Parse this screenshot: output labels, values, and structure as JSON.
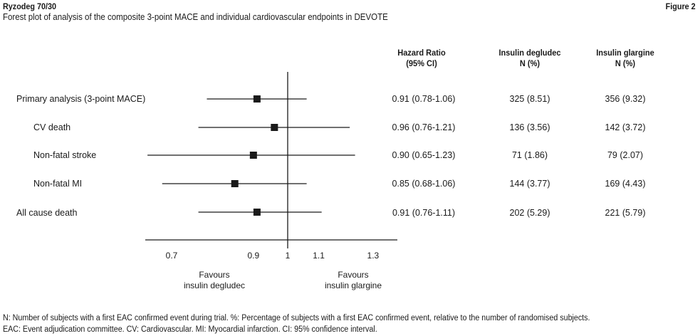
{
  "header": {
    "product": "Ryzodeg 70/30",
    "figure_label": "Figure 2",
    "subtitle": "Forest plot of analysis of the composite 3-point MACE and individual cardiovascular endpoints in DEVOTE"
  },
  "columns": {
    "hr_line1": "Hazard Ratio",
    "hr_line2": "(95% CI)",
    "deg_line1": "Insulin degludec",
    "deg_line2": "N (%)",
    "gla_line1": "Insulin glargine",
    "gla_line2": "N (%)"
  },
  "rows": [
    {
      "label": "Primary analysis (3-point MACE)",
      "hr_text": "0.91 (0.78-1.06)",
      "degludec": "325 (8.51)",
      "glargine": "356 (9.32)"
    },
    {
      "label": "CV death",
      "hr_text": "0.96 (0.76-1.21)",
      "degludec": "136 (3.56)",
      "glargine": "142 (3.72)"
    },
    {
      "label": "Non-fatal stroke",
      "hr_text": "0.90 (0.65-1.23)",
      "degludec": "71 (1.86)",
      "glargine": "79 (2.07)"
    },
    {
      "label": "Non-fatal MI",
      "hr_text": "0.85 (0.68-1.06)",
      "degludec": "144 (3.77)",
      "glargine": "169 (4.43)"
    },
    {
      "label": "All cause death",
      "hr_text": "0.91 (0.76-1.11)",
      "degludec": "202 (5.29)",
      "glargine": "221 (5.79)"
    }
  ],
  "chart_data": {
    "type": "forest",
    "xscale": "log",
    "reference_line": 1,
    "xticks": [
      0.7,
      0.9,
      1,
      1.1,
      1.3
    ],
    "xtick_labels": [
      "0.7",
      "0.9",
      "1",
      "1.1",
      "1.3"
    ],
    "favours_left_line1": "Favours",
    "favours_left_line2": "insulin degludec",
    "favours_right_line1": "Favours",
    "favours_right_line2": "insulin glargine",
    "series": [
      {
        "name": "Primary analysis (3-point MACE)",
        "hr": 0.91,
        "lower": 0.78,
        "upper": 1.06
      },
      {
        "name": "CV death",
        "hr": 0.96,
        "lower": 0.76,
        "upper": 1.21
      },
      {
        "name": "Non-fatal stroke",
        "hr": 0.9,
        "lower": 0.65,
        "upper": 1.23
      },
      {
        "name": "Non-fatal MI",
        "hr": 0.85,
        "lower": 0.68,
        "upper": 1.06
      },
      {
        "name": "All cause death",
        "hr": 0.91,
        "lower": 0.76,
        "upper": 1.11
      }
    ]
  },
  "footnotes": {
    "line1": "N: Number of subjects with a first EAC confirmed event during trial. %: Percentage of subjects with a first EAC confirmed event, relative to the number of randomised subjects.",
    "line2": "EAC: Event adjudication committee. CV: Cardiovascular. MI: Myocardial infarction. CI: 95% confidence interval."
  }
}
